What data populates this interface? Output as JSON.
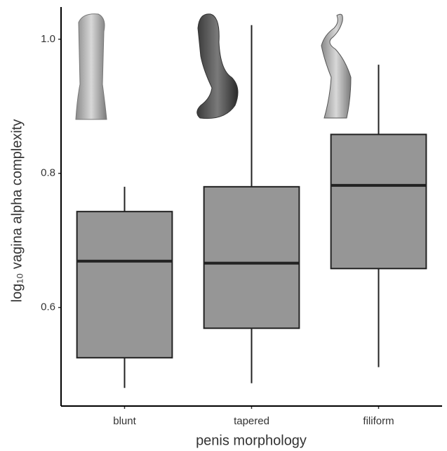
{
  "chart_data": {
    "type": "box",
    "x_label": "penis morphology",
    "y_label": "log₁₀ vagina alpha complexity",
    "categories": [
      "blunt",
      "tapered",
      "filiform"
    ],
    "min": [
      0.48,
      0.487,
      0.511
    ],
    "q1": [
      0.525,
      0.569,
      0.658
    ],
    "median": [
      0.669,
      0.666,
      0.782
    ],
    "q3": [
      0.743,
      0.78,
      0.858
    ],
    "max": [
      0.78,
      1.021,
      0.962
    ],
    "color": "#969696",
    "ylim": [
      0.453,
      1.048
    ],
    "yticks": [
      0.6,
      0.8,
      {
        "value": 1.0,
        "label": "1.0"
      }
    ]
  }
}
